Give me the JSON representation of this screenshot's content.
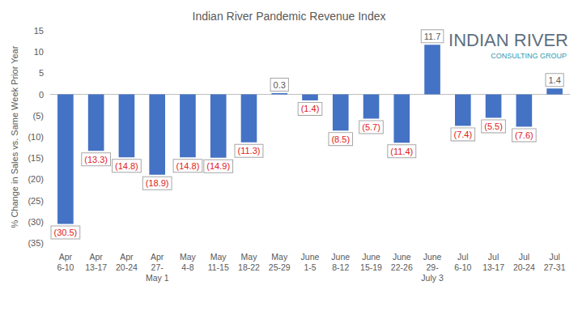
{
  "chart_data": {
    "type": "bar",
    "title": "Indian River Pandemic Revenue Index",
    "y_label": "% Change in Sales vs. Same Week Prior Year",
    "annotations": [
      "INDIAN RIVER",
      "CONSULTING GROUP"
    ],
    "categories": [
      "Apr\n6-10",
      "Apr\n13-17",
      "Apr\n20-24",
      "Apr\n27-\nMay 1",
      "May\n4-8",
      "May\n11-15",
      "May\n18-22",
      "May\n25-29",
      "June\n1-5",
      "June\n8-12",
      "June\n15-19",
      "June\n22-26",
      "June\n29-\nJuly 3",
      "Jul\n6-10",
      "Jul\n13-17",
      "Jul\n20-24",
      "Jul\n27-31"
    ],
    "values": [
      -30.5,
      -13.3,
      -14.8,
      -18.9,
      -14.8,
      -14.9,
      -11.3,
      0.3,
      -1.4,
      -8.5,
      -5.7,
      -11.4,
      11.7,
      -7.4,
      -5.5,
      -7.6,
      1.4
    ],
    "value_labels": [
      "(30.5)",
      "(13.3)",
      "(14.8)",
      "(18.9)",
      "(14.8)",
      "(14.9)",
      "(11.3)",
      "0.3",
      "(1.4)",
      "(8.5)",
      "(5.7)",
      "(11.4)",
      "11.7",
      "(7.4)",
      "(5.5)",
      "(7.6)",
      "1.4"
    ],
    "color": "#4472c4",
    "ylim": [
      -35,
      15
    ],
    "yticks": [
      {
        "value": -35,
        "label": "(35)"
      },
      {
        "value": -30,
        "label": "(30)"
      },
      {
        "value": -25,
        "label": "(25)"
      },
      {
        "value": -20,
        "label": "(20)"
      },
      {
        "value": -15,
        "label": "(15)"
      },
      {
        "value": -10,
        "label": "(10)"
      },
      {
        "value": -5,
        "label": "(5)"
      },
      0,
      5,
      10,
      15
    ],
    "grid": false,
    "data_labels": true
  }
}
